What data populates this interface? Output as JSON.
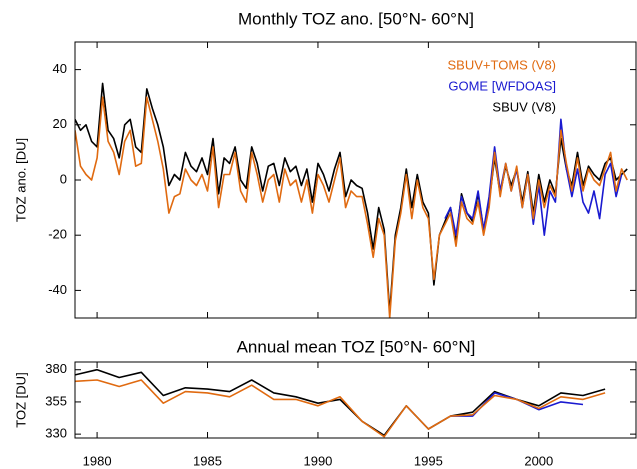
{
  "chart_data": [
    {
      "type": "line",
      "title": "Monthly TOZ ano. [50°N- 60°N]",
      "y_label": "TOZ ano. [DU]",
      "xlim": [
        1979,
        2004.4
      ],
      "ylim": [
        -50,
        50
      ],
      "yticks": [
        -40,
        -20,
        0,
        20,
        40
      ],
      "xticks": [
        1980,
        1985,
        1990,
        1995,
        2000
      ],
      "legend": "upper right",
      "x": [
        1979,
        1979.25,
        1979.5,
        1979.75,
        1980,
        1980.25,
        1980.5,
        1980.75,
        1981,
        1981.25,
        1981.5,
        1981.75,
        1982,
        1982.25,
        1982.5,
        1982.75,
        1983,
        1983.25,
        1983.5,
        1983.75,
        1984,
        1984.25,
        1984.5,
        1984.75,
        1985,
        1985.25,
        1985.5,
        1985.75,
        1986,
        1986.25,
        1986.5,
        1986.75,
        1987,
        1987.25,
        1987.5,
        1987.75,
        1988,
        1988.25,
        1988.5,
        1988.75,
        1989,
        1989.25,
        1989.5,
        1989.75,
        1990,
        1990.25,
        1990.5,
        1990.75,
        1991,
        1991.25,
        1991.5,
        1991.75,
        1992,
        1992.25,
        1992.5,
        1992.75,
        1993,
        1993.25,
        1993.5,
        1993.75,
        1994,
        1994.25,
        1994.5,
        1994.75,
        1995,
        1995.25,
        1995.5,
        1995.75,
        1996,
        1996.25,
        1996.5,
        1996.75,
        1997,
        1997.25,
        1997.5,
        1997.75,
        1998,
        1998.25,
        1998.5,
        1998.75,
        1999,
        1999.25,
        1999.5,
        1999.75,
        2000,
        2000.25,
        2000.5,
        2000.75,
        2001,
        2001.25,
        2001.5,
        2001.75,
        2002,
        2002.25,
        2002.5,
        2002.75,
        2003,
        2003.25,
        2003.5,
        2003.75,
        2004
      ],
      "series": [
        {
          "name": "SBUV+TOMS (V8)",
          "color": "#e06a10",
          "values": [
            18,
            5,
            2,
            0,
            8,
            30,
            14,
            10,
            2,
            14,
            18,
            5,
            6,
            30,
            22,
            14,
            4,
            -12,
            -6,
            -5,
            4,
            0,
            -2,
            2,
            -4,
            12,
            -10,
            2,
            2,
            10,
            -4,
            -8,
            10,
            2,
            -8,
            0,
            2,
            -8,
            4,
            -2,
            0,
            -8,
            0,
            -12,
            2,
            -2,
            -8,
            0,
            8,
            -10,
            -4,
            -6,
            -6,
            -16,
            -28,
            -14,
            -20,
            -50,
            -22,
            -12,
            2,
            -14,
            0,
            -10,
            -14,
            -36,
            -20,
            -16,
            -12,
            -24,
            -8,
            -14,
            -16,
            -8,
            -20,
            -10,
            10,
            -6,
            6,
            -4,
            5,
            -10,
            2,
            -14,
            0,
            -10,
            -2,
            -6,
            18,
            6,
            -4,
            8,
            -4,
            4,
            0,
            -2,
            4,
            10,
            -4,
            4,
            0
          ]
        },
        {
          "name": "GOME [WFDOAS]",
          "color": "#1a1ad0",
          "values": [
            null,
            null,
            null,
            null,
            null,
            null,
            null,
            null,
            null,
            null,
            null,
            null,
            null,
            null,
            null,
            null,
            null,
            null,
            null,
            null,
            null,
            null,
            null,
            null,
            null,
            null,
            null,
            null,
            null,
            null,
            null,
            null,
            null,
            null,
            null,
            null,
            null,
            null,
            null,
            null,
            null,
            null,
            null,
            null,
            null,
            null,
            null,
            null,
            null,
            null,
            null,
            null,
            null,
            null,
            null,
            null,
            null,
            null,
            null,
            null,
            null,
            null,
            null,
            null,
            null,
            null,
            null,
            -14,
            -10,
            -20,
            -6,
            -12,
            -14,
            -4,
            -18,
            -6,
            12,
            -4,
            6,
            -4,
            4,
            -10,
            2,
            -16,
            -2,
            -20,
            -4,
            -8,
            22,
            4,
            -6,
            4,
            -8,
            -12,
            -4,
            -14,
            2,
            6,
            -6,
            2,
            null
          ]
        },
        {
          "name": "SBUV (V8)",
          "color": "#000000",
          "values": [
            22,
            18,
            20,
            14,
            12,
            35,
            18,
            15,
            8,
            20,
            22,
            12,
            10,
            33,
            26,
            20,
            12,
            -2,
            2,
            0,
            10,
            5,
            3,
            8,
            2,
            15,
            -5,
            8,
            6,
            12,
            0,
            -3,
            12,
            6,
            -4,
            5,
            6,
            -2,
            8,
            3,
            5,
            -2,
            4,
            -8,
            6,
            2,
            -4,
            4,
            10,
            -6,
            0,
            -2,
            -3,
            -12,
            -25,
            -10,
            -18,
            -48,
            -20,
            -10,
            4,
            -10,
            2,
            -8,
            -12,
            -38,
            -20,
            -15,
            -10,
            -22,
            -5,
            -12,
            -15,
            -5,
            -18,
            -8,
            8,
            -5,
            5,
            -2,
            4,
            -8,
            3,
            -12,
            2,
            -8,
            0,
            -5,
            15,
            4,
            -2,
            10,
            -2,
            5,
            2,
            0,
            6,
            8,
            0,
            2,
            4
          ]
        }
      ]
    },
    {
      "type": "line",
      "title": "Annual mean TOZ [50°N- 60°N]",
      "y_label": "TOZ [DU]",
      "xlim": [
        1979,
        2004.4
      ],
      "ylim": [
        327,
        386
      ],
      "yticks": [
        330,
        355,
        380
      ],
      "xticks": [
        1980,
        1985,
        1990,
        1995,
        2000
      ],
      "x": [
        1979,
        1980,
        1981,
        1982,
        1983,
        1984,
        1985,
        1986,
        1987,
        1988,
        1989,
        1990,
        1991,
        1992,
        1993,
        1994,
        1995,
        1996,
        1997,
        1998,
        1999,
        2000,
        2001,
        2002,
        2003
      ],
      "series": [
        {
          "color": "#e06a10",
          "values": [
            371,
            372,
            367,
            372,
            354,
            363,
            362,
            359,
            368,
            357,
            357,
            352,
            359,
            340,
            328,
            352,
            334,
            344,
            345,
            360,
            357,
            350,
            359,
            357,
            362
          ]
        },
        {
          "color": "#1a1ad0",
          "values": [
            null,
            null,
            null,
            null,
            null,
            null,
            null,
            null,
            null,
            null,
            null,
            null,
            null,
            null,
            null,
            null,
            null,
            344,
            344,
            362,
            357,
            349,
            355,
            353,
            null
          ]
        },
        {
          "color": "#000000",
          "values": [
            376,
            380,
            374,
            378,
            360,
            366,
            365,
            363,
            372,
            362,
            359,
            354,
            357,
            340,
            329,
            352,
            334,
            344,
            347,
            363,
            357,
            352,
            362,
            360,
            365
          ]
        }
      ]
    }
  ]
}
